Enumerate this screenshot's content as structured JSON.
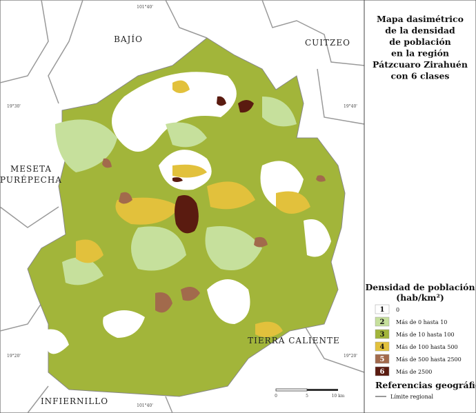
{
  "title": [
    "Mapa dasimétrico",
    "de la densidad",
    "de población",
    "en la región",
    "Pátzcuaro Zirahuén",
    "con 6 clases"
  ],
  "regions": [
    {
      "lines": [
        "BAJÍO"
      ]
    },
    {
      "lines": [
        "CUITZEO"
      ]
    },
    {
      "lines": [
        "MESETA",
        "PURÉPECHA"
      ]
    },
    {
      "lines": [
        "TIERRA CALIENTE"
      ]
    },
    {
      "lines": [
        "INFIERNILLO"
      ]
    }
  ],
  "coordinates": [
    "101°40'",
    "19°30'",
    "19°40'",
    "19°20'",
    "19°20'",
    "101°40'"
  ],
  "legend": {
    "title": [
      "Densidad de población",
      "(hab/km²)"
    ],
    "items": [
      {
        "class": "1",
        "label": "0",
        "color": "#ffffff"
      },
      {
        "class": "2",
        "label": "Más de 0 hasta 10",
        "color": "#c6e09c"
      },
      {
        "class": "3",
        "label": "Más de 10 hasta 100",
        "color": "#a2b53a"
      },
      {
        "class": "4",
        "label": "Más de 100 hasta 500",
        "color": "#e2c13c"
      },
      {
        "class": "5",
        "label": "Más de 500 hasta 2500",
        "color": "#a26a4c"
      },
      {
        "class": "6",
        "label": "Más de 2500",
        "color": "#5a1b10"
      }
    ]
  },
  "references": {
    "title": "Referencias geográficas",
    "items": [
      "Límite regional"
    ]
  },
  "scale": [
    "0",
    "5",
    "10 km"
  ]
}
